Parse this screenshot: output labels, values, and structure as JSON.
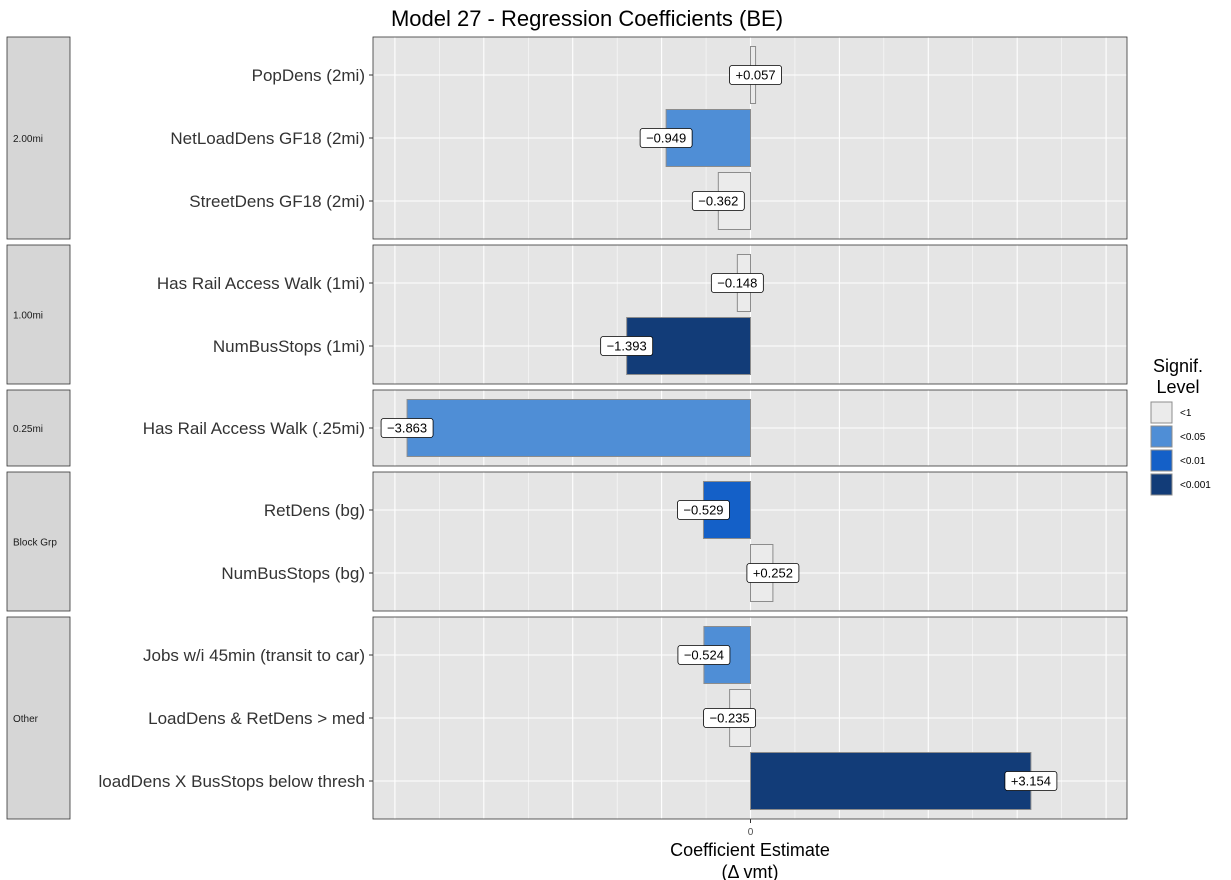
{
  "chart_data": {
    "type": "bar",
    "orientation": "horizontal",
    "title": "Model 27 - Regression Coefficients (BE)",
    "xlabel": [
      "Coefficient Estimate",
      "(Δ vmt)"
    ],
    "x_ticks": [
      "0"
    ],
    "grid": true,
    "legend": {
      "title": [
        "Signif.",
        "Level"
      ],
      "placement": "right",
      "items": [
        {
          "label": "<1",
          "color": "#ebebeb"
        },
        {
          "label": "<0.05",
          "color": "#4f8ed6"
        },
        {
          "label": "<0.01",
          "color": "#1460c8"
        },
        {
          "label": "<0.001",
          "color": "#123c78"
        }
      ]
    },
    "facets": [
      {
        "name": "2.00mi",
        "rows": [
          {
            "label": "PopDens (2mi)",
            "value": 0.057,
            "value_label": "+0.057",
            "level": "<1"
          },
          {
            "label": "NetLoadDens GF18 (2mi)",
            "value": -0.949,
            "value_label": "−0.949",
            "level": "<0.05"
          },
          {
            "label": "StreetDens GF18 (2mi)",
            "value": -0.362,
            "value_label": "−0.362",
            "level": "<1"
          }
        ]
      },
      {
        "name": "1.00mi",
        "rows": [
          {
            "label": "Has Rail Access Walk (1mi)",
            "value": -0.148,
            "value_label": "−0.148",
            "level": "<1"
          },
          {
            "label": "NumBusStops (1mi)",
            "value": -1.393,
            "value_label": "−1.393",
            "level": "<0.001"
          }
        ]
      },
      {
        "name": "0.25mi",
        "rows": [
          {
            "label": "Has Rail Access Walk (.25mi)",
            "value": -3.863,
            "value_label": "−3.863",
            "level": "<0.05"
          }
        ]
      },
      {
        "name": "Block Grp",
        "rows": [
          {
            "label": "RetDens (bg)",
            "value": -0.529,
            "value_label": "−0.529",
            "level": "<0.01"
          },
          {
            "label": "NumBusStops (bg)",
            "value": 0.252,
            "value_label": "+0.252",
            "level": "<1"
          }
        ]
      },
      {
        "name": "Other",
        "rows": [
          {
            "label": "Jobs w/i 45min (transit to car)",
            "value": -0.524,
            "value_label": "−0.524",
            "level": "<0.05"
          },
          {
            "label": "LoadDens & RetDens > med",
            "value": -0.235,
            "value_label": "−0.235",
            "level": "<1"
          },
          {
            "label": "loadDens X BusStops below thresh",
            "value": 3.154,
            "value_label": "+3.154",
            "level": "<0.001"
          }
        ]
      }
    ]
  }
}
